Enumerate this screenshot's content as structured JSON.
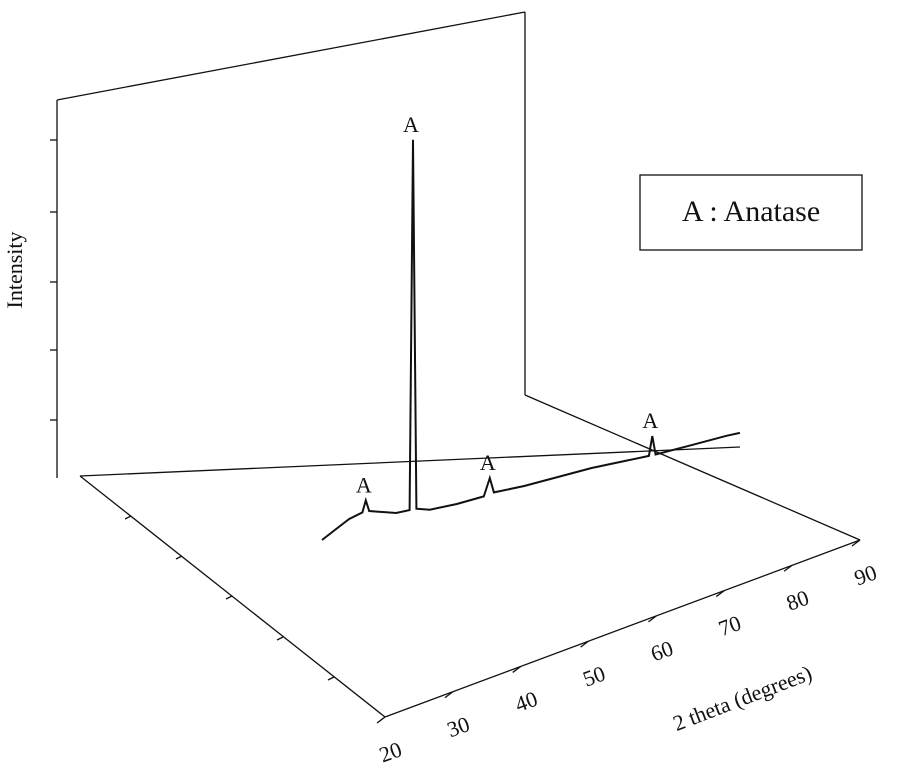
{
  "chart_data": {
    "type": "line",
    "x_label": "2 theta (degrees)",
    "y_label": "Intensity",
    "legend_text": "A : Anatase",
    "xlim": [
      20,
      90
    ],
    "xticks": [
      20,
      30,
      40,
      50,
      60,
      70,
      80,
      90
    ],
    "ylim": [
      0,
      100
    ],
    "color": "#111111",
    "x": [
      20,
      22,
      24,
      26,
      26.5,
      27,
      29,
      31,
      33,
      33.5,
      34,
      36,
      40,
      44,
      44.9,
      45.5,
      50,
      55,
      60,
      65,
      68.5,
      69,
      69.5,
      75,
      80,
      82
    ],
    "values": [
      0,
      2,
      4,
      5,
      8,
      5,
      4,
      3,
      3,
      100,
      3,
      2,
      2,
      2.5,
      7,
      3,
      3,
      3.5,
      4,
      4,
      4,
      9,
      4,
      4.5,
      5,
      5
    ],
    "peak_labels": [
      {
        "x": 26.5,
        "label": "A"
      },
      {
        "x": 33.5,
        "label": "A"
      },
      {
        "x": 44.9,
        "label": "A"
      },
      {
        "x": 69,
        "label": "A"
      }
    ]
  }
}
